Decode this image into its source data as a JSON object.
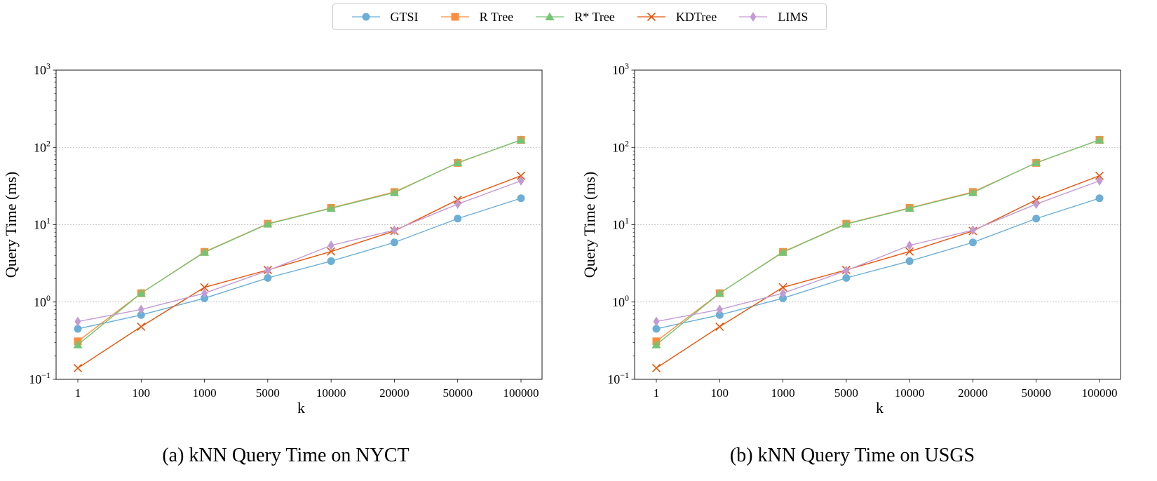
{
  "legend": [
    {
      "name": "GTSI",
      "color": "#6baed6",
      "marker": "circle"
    },
    {
      "name": "R Tree",
      "color": "#fd8d3c",
      "marker": "square"
    },
    {
      "name": "R* Tree",
      "color": "#74c476",
      "marker": "triangle"
    },
    {
      "name": "KDTree",
      "color": "#e6550d",
      "marker": "x"
    },
    {
      "name": "LIMS",
      "color": "#c39bd3",
      "marker": "diamond"
    }
  ],
  "chart_data": [
    {
      "type": "line",
      "caption": "(a) kNN Query Time on NYCT",
      "xlabel": "k",
      "ylabel": "Query Time (ms)",
      "yscale": "log",
      "ylim": [
        0.1,
        1000
      ],
      "ytick_labels": [
        {
          "base": "10",
          "exp": "−1"
        },
        {
          "base": "10",
          "exp": "0"
        },
        {
          "base": "10",
          "exp": "1"
        },
        {
          "base": "10",
          "exp": "2"
        },
        {
          "base": "10",
          "exp": "3"
        }
      ],
      "ytick_values": [
        0.1,
        1,
        10,
        100,
        1000
      ],
      "grid": "horizontal, dotted",
      "categories": [
        "1",
        "100",
        "1000",
        "5000",
        "10000",
        "20000",
        "50000",
        "100000"
      ],
      "series": [
        {
          "name": "GTSI",
          "values": [
            0.45,
            0.68,
            1.12,
            2.05,
            3.38,
            5.9,
            12.0,
            22.0
          ]
        },
        {
          "name": "R Tree",
          "values": [
            0.31,
            1.3,
            4.45,
            10.3,
            16.5,
            26.5,
            63.0,
            125.0
          ]
        },
        {
          "name": "R* Tree",
          "values": [
            0.28,
            1.3,
            4.4,
            10.2,
            16.3,
            26.0,
            63.5,
            125.0
          ]
        },
        {
          "name": "KDTree",
          "values": [
            0.14,
            0.48,
            1.55,
            2.6,
            4.5,
            8.3,
            21.0,
            43.0
          ]
        },
        {
          "name": "LIMS",
          "values": [
            0.56,
            0.8,
            1.3,
            2.55,
            5.4,
            8.5,
            18.5,
            37.0
          ]
        }
      ]
    },
    {
      "type": "line",
      "caption": "(b) kNN Query Time on USGS",
      "xlabel": "k",
      "ylabel": "Query Time (ms)",
      "yscale": "log",
      "ylim": [
        0.1,
        1000
      ],
      "ytick_labels": [
        {
          "base": "10",
          "exp": "−1"
        },
        {
          "base": "10",
          "exp": "0"
        },
        {
          "base": "10",
          "exp": "1"
        },
        {
          "base": "10",
          "exp": "2"
        },
        {
          "base": "10",
          "exp": "3"
        }
      ],
      "ytick_values": [
        0.1,
        1,
        10,
        100,
        1000
      ],
      "grid": "horizontal, dotted",
      "categories": [
        "1",
        "100",
        "1000",
        "5000",
        "10000",
        "20000",
        "50000",
        "100000"
      ],
      "series": [
        {
          "name": "GTSI",
          "values": [
            0.45,
            0.68,
            1.12,
            2.05,
            3.38,
            5.9,
            12.0,
            22.0
          ]
        },
        {
          "name": "R Tree",
          "values": [
            0.31,
            1.3,
            4.45,
            10.3,
            16.5,
            26.5,
            63.0,
            125.0
          ]
        },
        {
          "name": "R* Tree",
          "values": [
            0.28,
            1.3,
            4.4,
            10.2,
            16.3,
            26.0,
            63.5,
            125.0
          ]
        },
        {
          "name": "KDTree",
          "values": [
            0.14,
            0.48,
            1.55,
            2.6,
            4.5,
            8.3,
            21.0,
            43.0
          ]
        },
        {
          "name": "LIMS",
          "values": [
            0.56,
            0.8,
            1.3,
            2.55,
            5.4,
            8.5,
            18.5,
            37.0
          ]
        }
      ]
    }
  ]
}
